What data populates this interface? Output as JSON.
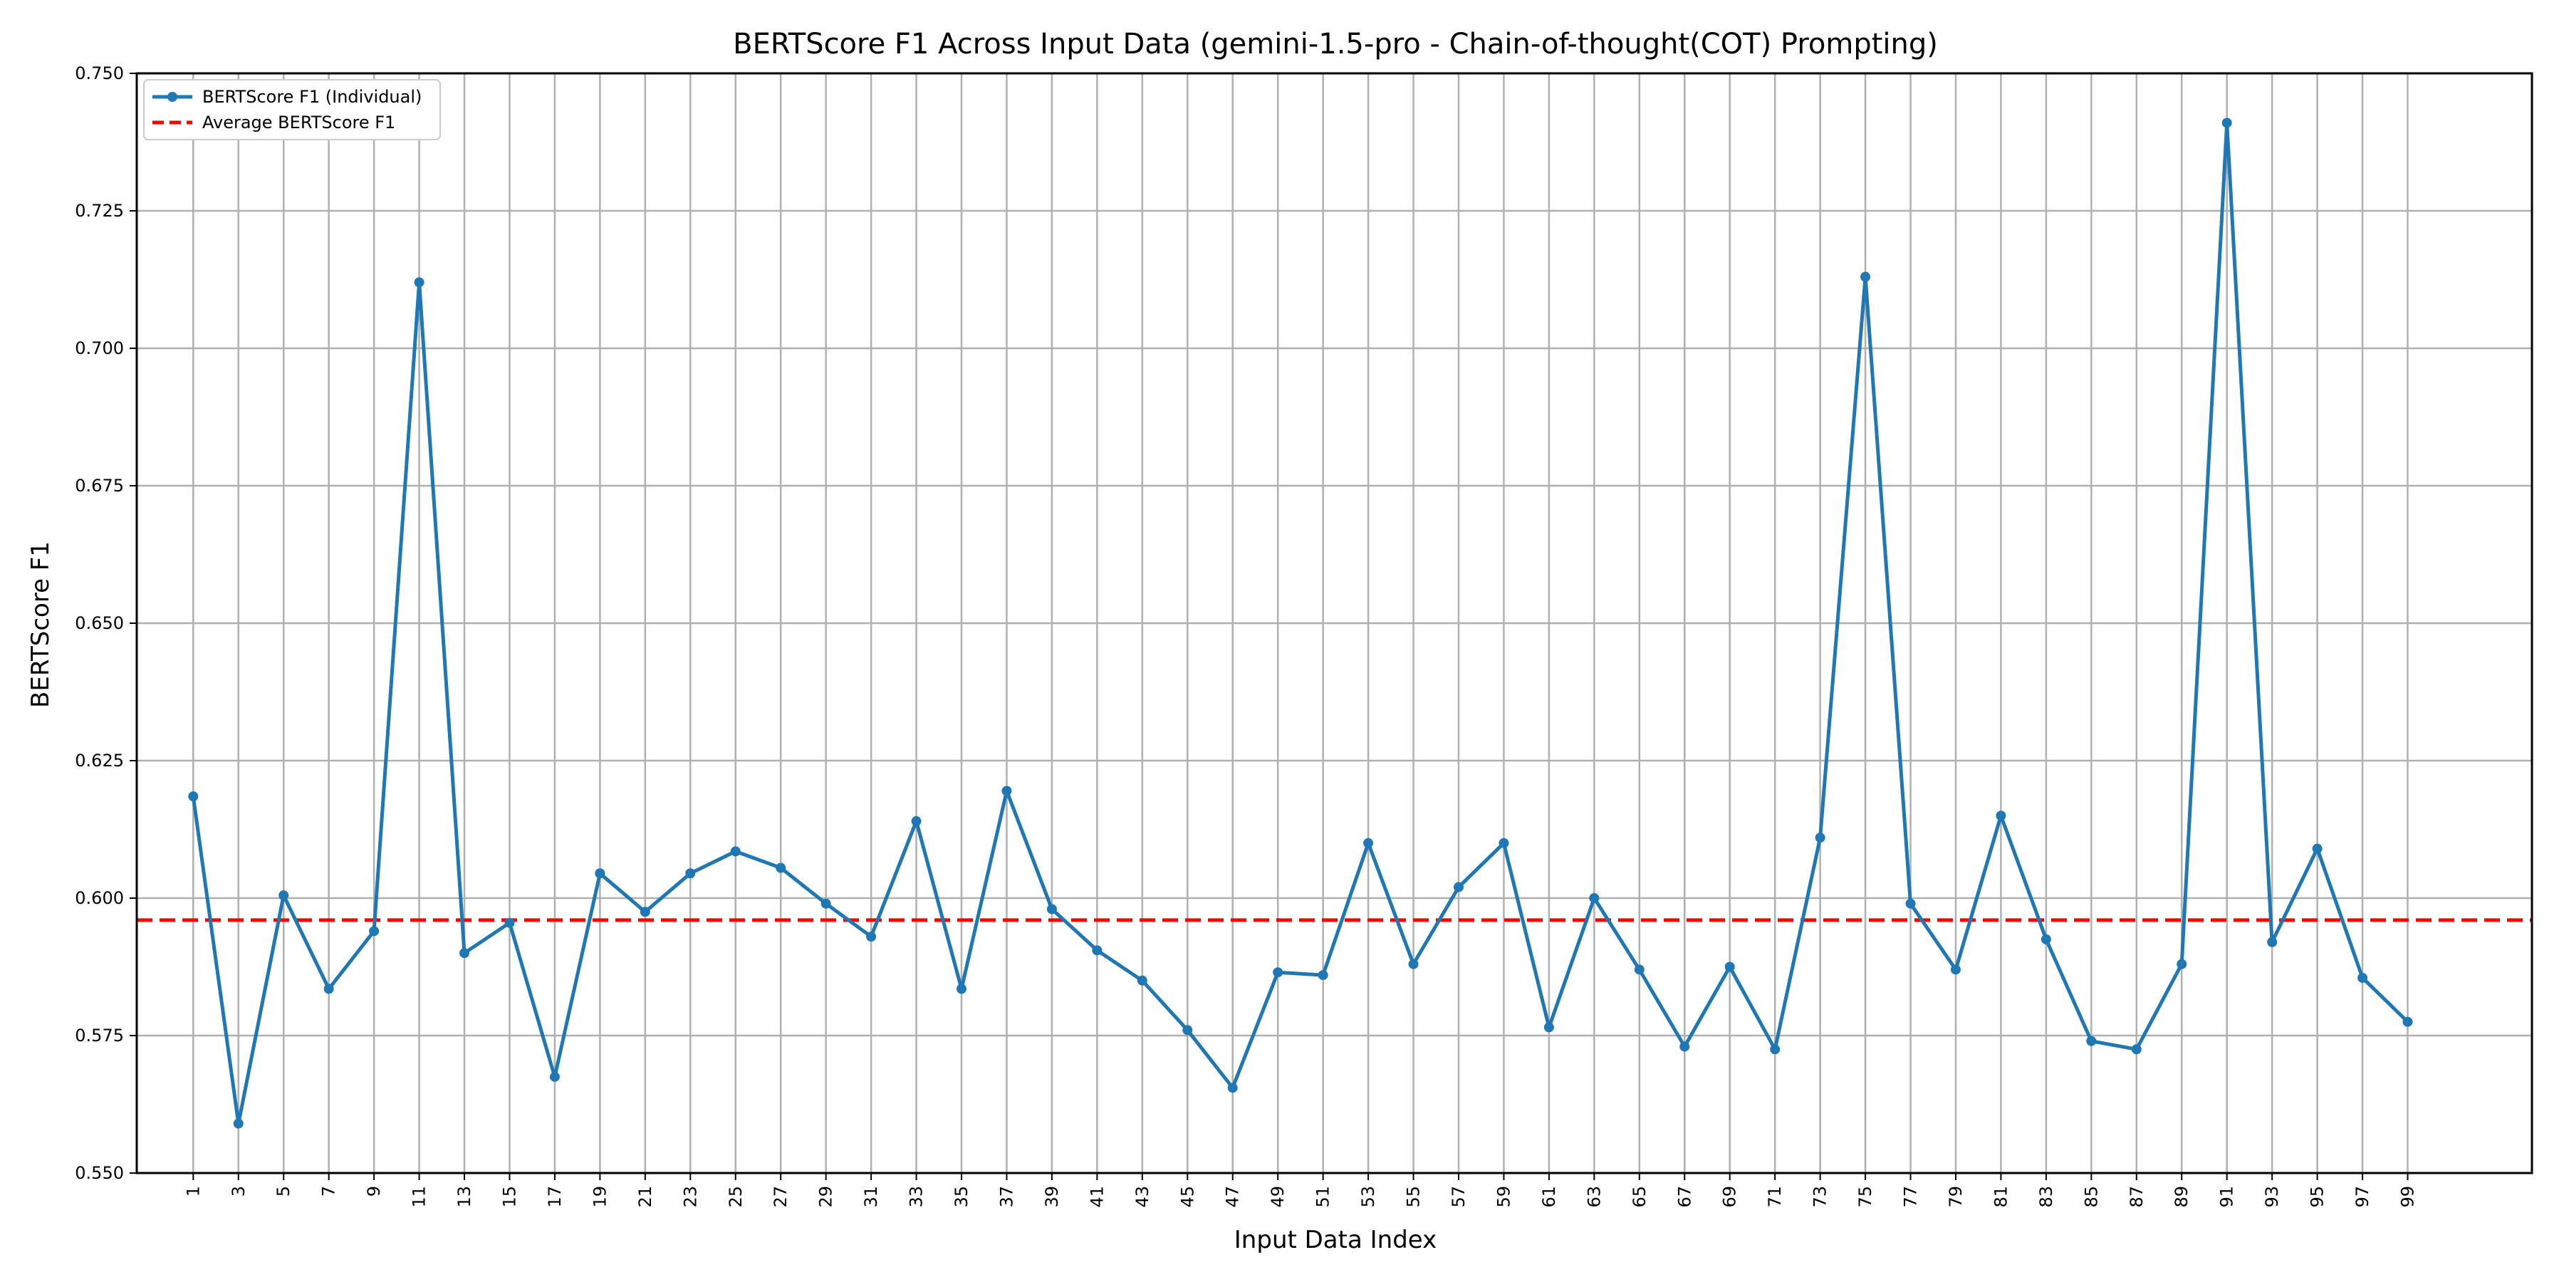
{
  "chart_data": {
    "type": "line",
    "title": "BERTScore F1 Across Input Data (gemini-1.5-pro - Chain-of-thought(COT) Prompting)",
    "xlabel": "Input Data Index",
    "ylabel": "BERTScore F1",
    "ylim": [
      0.55,
      0.75
    ],
    "xlim": [
      -1.5,
      104.5
    ],
    "yticks": [
      0.55,
      0.575,
      0.6,
      0.625,
      0.65,
      0.675,
      0.7,
      0.725,
      0.75
    ],
    "ytick_labels": [
      "0.550",
      "0.575",
      "0.600",
      "0.625",
      "0.650",
      "0.675",
      "0.700",
      "0.725",
      "0.750"
    ],
    "xticks": [
      1,
      3,
      5,
      7,
      9,
      11,
      13,
      15,
      17,
      19,
      21,
      23,
      25,
      27,
      29,
      31,
      33,
      35,
      37,
      39,
      41,
      43,
      45,
      47,
      49,
      51,
      53,
      55,
      57,
      59,
      61,
      63,
      65,
      67,
      69,
      71,
      73,
      75,
      77,
      79,
      81,
      83,
      85,
      87,
      89,
      91,
      93,
      95,
      97,
      99
    ],
    "xtick_labels": [
      "1",
      "3",
      "5",
      "7",
      "9",
      "11",
      "13",
      "15",
      "17",
      "19",
      "21",
      "23",
      "25",
      "27",
      "29",
      "31",
      "33",
      "35",
      "37",
      "39",
      "41",
      "43",
      "45",
      "47",
      "49",
      "51",
      "53",
      "55",
      "57",
      "59",
      "61",
      "63",
      "65",
      "67",
      "69",
      "71",
      "73",
      "75",
      "77",
      "79",
      "81",
      "83",
      "85",
      "87",
      "89",
      "91",
      "93",
      "95",
      "97",
      "99"
    ],
    "grid": true,
    "legend_position": "top-left",
    "series": [
      {
        "name": "BERTScore F1 (Individual)",
        "color": "#1f77b4",
        "style": "solid-with-markers",
        "x": [
          1,
          3,
          5,
          7,
          9,
          11,
          13,
          15,
          17,
          19,
          21,
          23,
          25,
          27,
          29,
          31,
          33,
          35,
          37,
          39,
          41,
          43,
          45,
          47,
          49,
          51,
          53,
          55,
          57,
          59,
          61,
          63,
          65,
          67,
          69,
          71,
          73,
          75,
          77,
          79,
          81,
          83,
          85,
          87,
          89,
          91,
          93,
          95,
          97,
          99
        ],
        "y": [
          0.6185,
          0.559,
          0.6005,
          0.5835,
          0.594,
          0.712,
          0.59,
          0.5955,
          0.5675,
          0.6045,
          0.5975,
          0.6045,
          0.6085,
          0.6055,
          0.599,
          0.593,
          0.614,
          0.5835,
          0.6195,
          0.598,
          0.5905,
          0.585,
          0.576,
          0.5655,
          0.5865,
          0.586,
          0.61,
          0.588,
          0.602,
          0.61,
          0.5765,
          0.6,
          0.587,
          0.573,
          0.5875,
          0.5725,
          0.611,
          0.713,
          0.599,
          0.587,
          0.615,
          0.5925,
          0.574,
          0.5725,
          0.588,
          0.741,
          0.592,
          0.609,
          0.5855,
          0.5775
        ]
      },
      {
        "name": "Average BERTScore F1",
        "color": "#ff0000",
        "style": "dashed",
        "y_constant": 0.596
      }
    ]
  }
}
